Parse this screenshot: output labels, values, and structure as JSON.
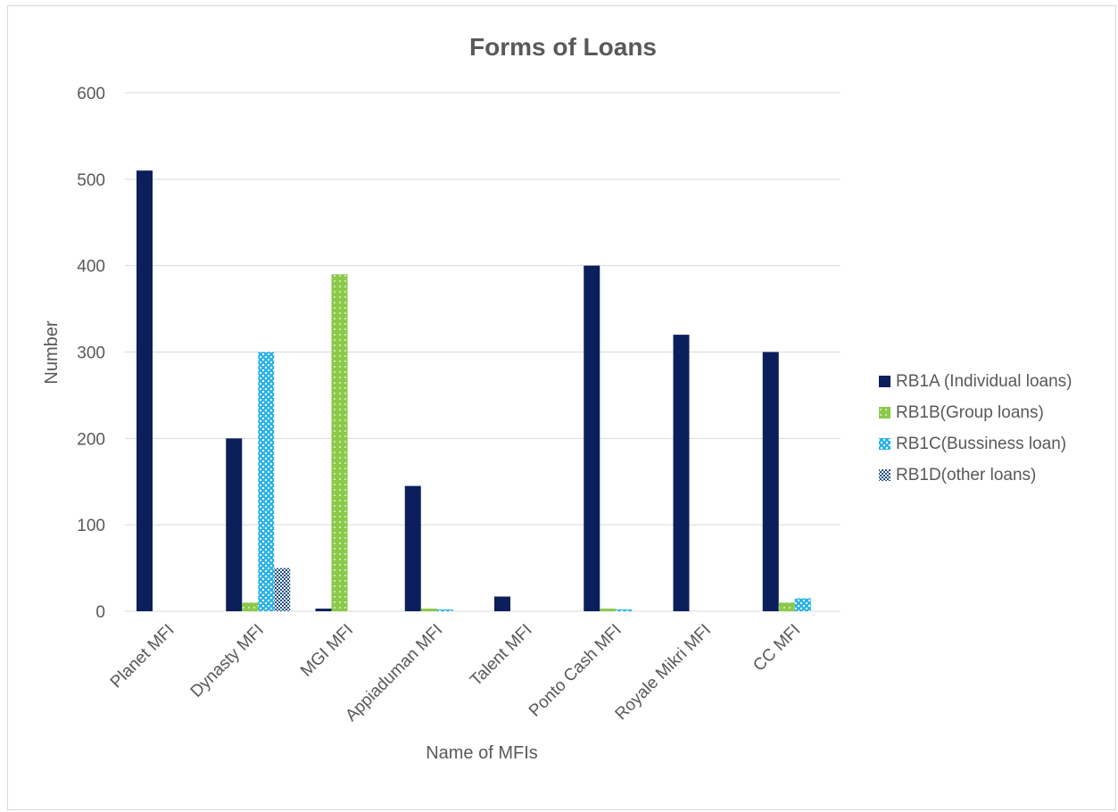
{
  "chart_data": {
    "type": "bar",
    "title": "Forms of Loans",
    "xlabel": "Name of MFIs",
    "ylabel": "Number",
    "ylim": [
      0,
      600
    ],
    "yticks": [
      0,
      100,
      200,
      300,
      400,
      500,
      600
    ],
    "grid": true,
    "legend_position": "right",
    "categories": [
      "Planet MFI",
      "Dynasty MFI",
      "MGI MFI",
      "Appiaduman MFI",
      "Talent MFI",
      "Ponto Cash MFI",
      "Royale Mikri MFI",
      "CC MFI"
    ],
    "series": [
      {
        "name": "RB1A (Individual loans)",
        "color": "#0b1f5c",
        "pattern": "solid",
        "values": [
          510,
          200,
          3,
          145,
          17,
          400,
          320,
          300
        ]
      },
      {
        "name": "RB1B(Group loans)",
        "color": "#8bc94a",
        "pattern": "dots",
        "values": [
          0,
          10,
          390,
          3,
          0,
          3,
          0,
          10
        ]
      },
      {
        "name": "RB1C(Bussiness loan)",
        "color": "#2eb4e6",
        "pattern": "checker",
        "values": [
          0,
          300,
          0,
          2,
          0,
          2,
          0,
          15
        ]
      },
      {
        "name": "RB1D(other loans)",
        "color": "#1c4f86",
        "pattern": "checker",
        "values": [
          0,
          50,
          0,
          0,
          0,
          0,
          0,
          0
        ]
      }
    ]
  }
}
